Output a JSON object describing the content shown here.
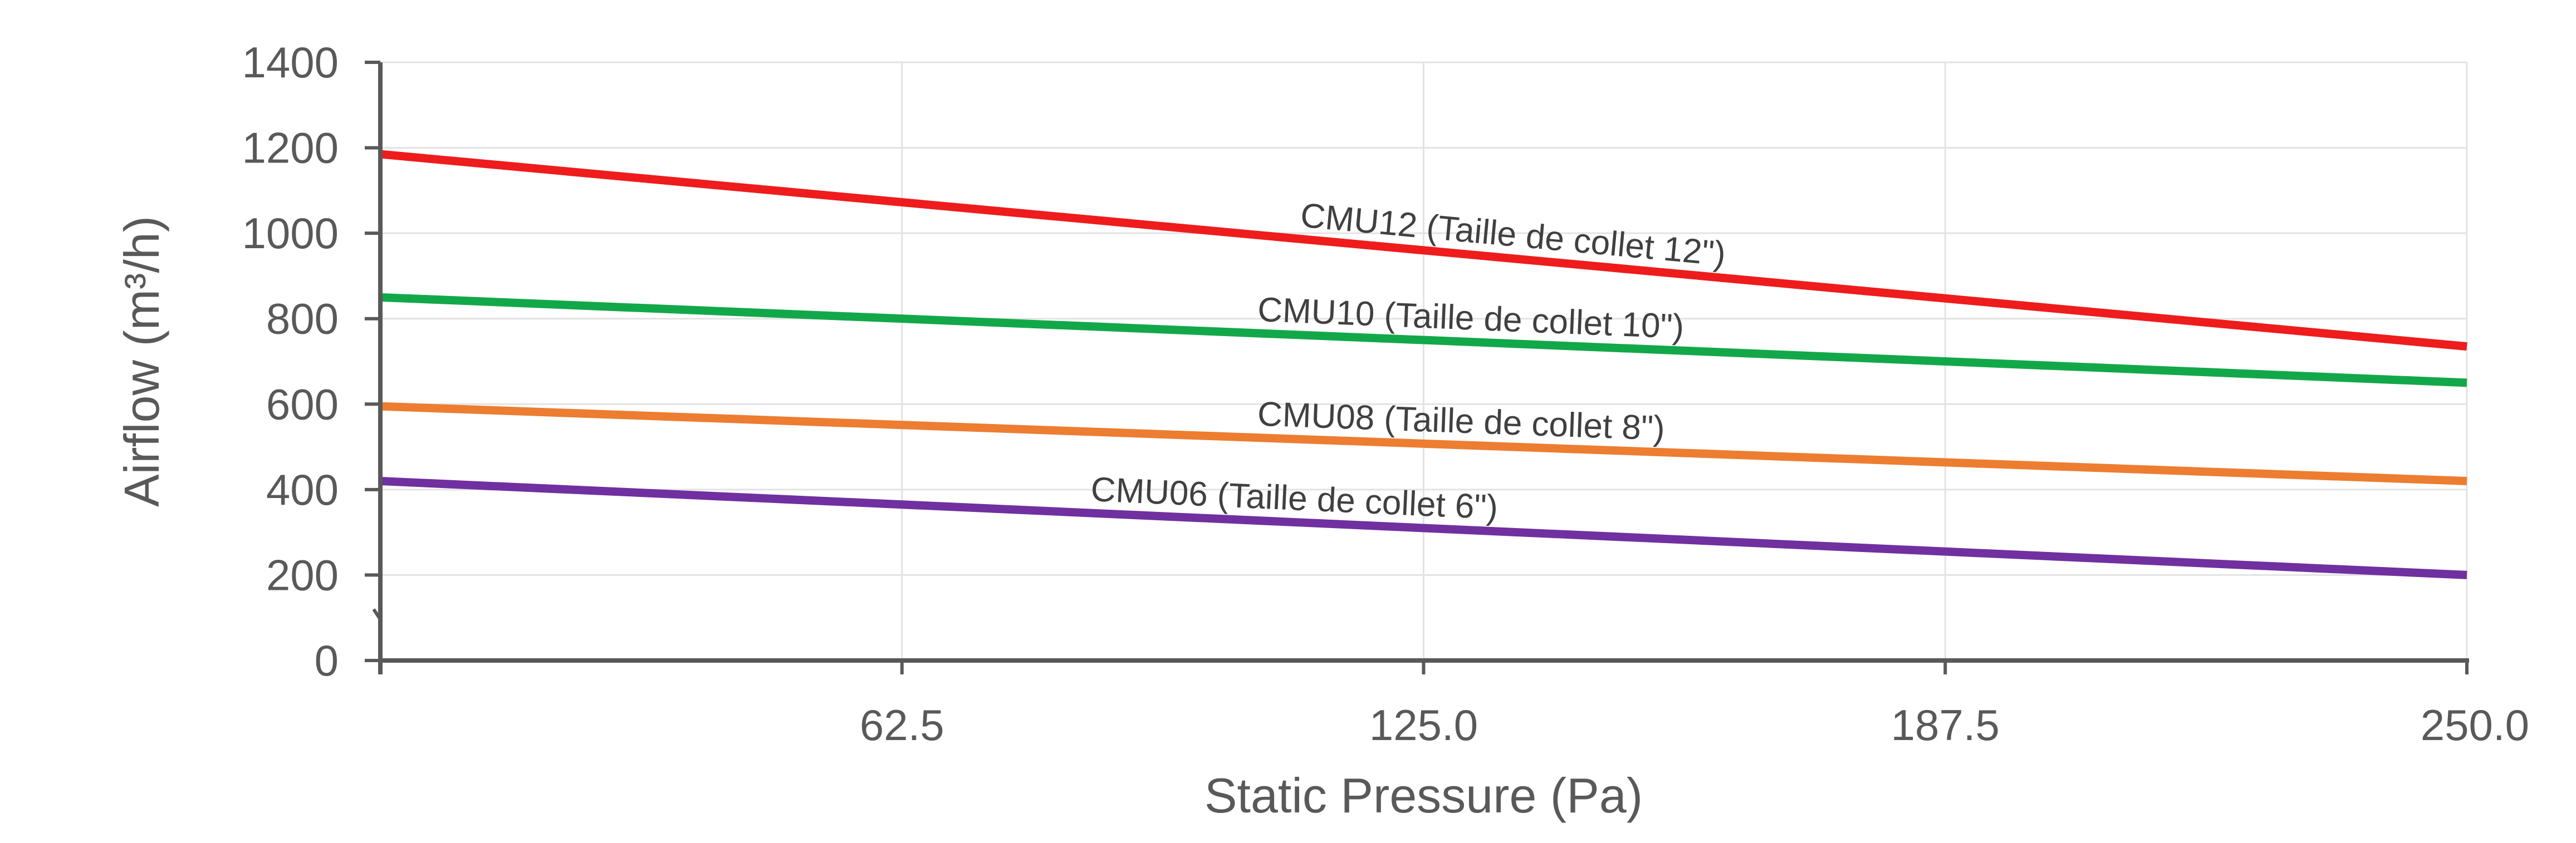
{
  "chart_data": {
    "type": "line",
    "xlabel": "Static Pressure (Pa)",
    "ylabel": "Airflow (m³/h)",
    "xlim": [
      0,
      250
    ],
    "ylim": [
      0,
      1400
    ],
    "x_ticks": [
      {
        "value": 62.5,
        "label": "62.5"
      },
      {
        "value": 125,
        "label": "125.0"
      },
      {
        "value": 187.5,
        "label": "187.5"
      },
      {
        "value": 250,
        "label": "250.0"
      }
    ],
    "y_ticks": [
      {
        "value": 0,
        "label": "0"
      },
      {
        "value": 200,
        "label": "200"
      },
      {
        "value": 400,
        "label": "400"
      },
      {
        "value": 600,
        "label": "600"
      },
      {
        "value": 800,
        "label": "800"
      },
      {
        "value": 1000,
        "label": "1000"
      },
      {
        "value": 1200,
        "label": "1200"
      },
      {
        "value": 1400,
        "label": "1400"
      }
    ],
    "grid": true,
    "legend": "none",
    "series": [
      {
        "name": "CMU12 (Taille de collet 12\")",
        "color": "#ee1c1c",
        "x": [
          0,
          250
        ],
        "y": [
          1185,
          735
        ]
      },
      {
        "name": "CMU10 (Taille de collet 10\")",
        "color": "#12a84a",
        "x": [
          0,
          250
        ],
        "y": [
          850,
          650
        ]
      },
      {
        "name": "CMU08 (Taille de collet 8\")",
        "color": "#ed7d31",
        "x": [
          0,
          250
        ],
        "y": [
          595,
          420
        ]
      },
      {
        "name": "CMU06 (Taille de collet 6\")",
        "color": "#7030a0",
        "x": [
          0,
          250
        ],
        "y": [
          420,
          200
        ]
      }
    ]
  }
}
